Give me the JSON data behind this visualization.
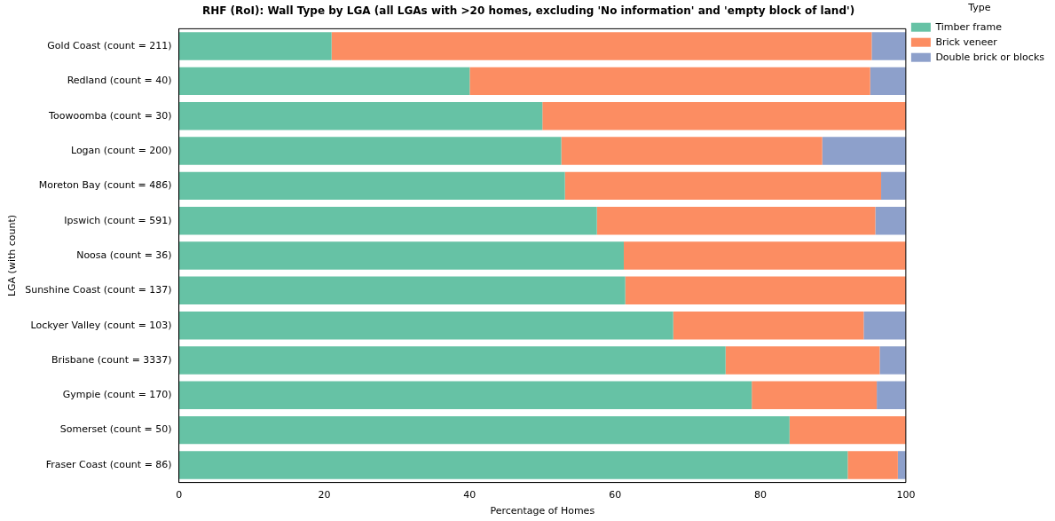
{
  "chart_data": {
    "type": "bar",
    "orientation": "horizontal",
    "stacked": true,
    "title": "RHF (RoI): Wall Type by LGA (all LGAs with >20 homes, excluding 'No information' and 'empty block of land')",
    "xlabel": "Percentage of Homes",
    "ylabel": "LGA (with count)",
    "legend_title": "Type",
    "legend": "top right",
    "grid": false,
    "categories": [
      "Gold Coast (count = 211)",
      "Redland (count = 40)",
      "Toowoomba (count = 30)",
      "Logan (count = 200)",
      "Moreton Bay (count = 486)",
      "Ipswich (count = 591)",
      "Noosa (count = 36)",
      "Sunshine Coast (count = 137)",
      "Lockyer Valley (count = 103)",
      "Brisbane (count = 3337)",
      "Gympie (count = 170)",
      "Somerset (count = 50)",
      "Fraser Coast (count = 86)"
    ],
    "xlim": [
      0,
      100
    ],
    "xticks": [
      0,
      20,
      40,
      60,
      80,
      100
    ],
    "series": [
      {
        "name": "Timber frame",
        "color": "#66c2a5",
        "values": [
          21.0,
          40.0,
          50.0,
          52.6,
          53.1,
          57.5,
          61.2,
          61.4,
          68.0,
          75.2,
          78.8,
          84.0,
          92.0
        ]
      },
      {
        "name": "Brick veneer",
        "color": "#fc8d62",
        "values": [
          74.3,
          55.1,
          50.0,
          35.9,
          43.5,
          38.3,
          38.8,
          38.6,
          26.2,
          21.2,
          17.2,
          16.0,
          6.9
        ]
      },
      {
        "name": "Double brick or blocks",
        "color": "#8da0cb",
        "values": [
          4.7,
          4.9,
          null,
          11.5,
          3.4,
          4.2,
          null,
          null,
          5.8,
          3.6,
          4.0,
          null,
          1.1
        ]
      }
    ]
  }
}
